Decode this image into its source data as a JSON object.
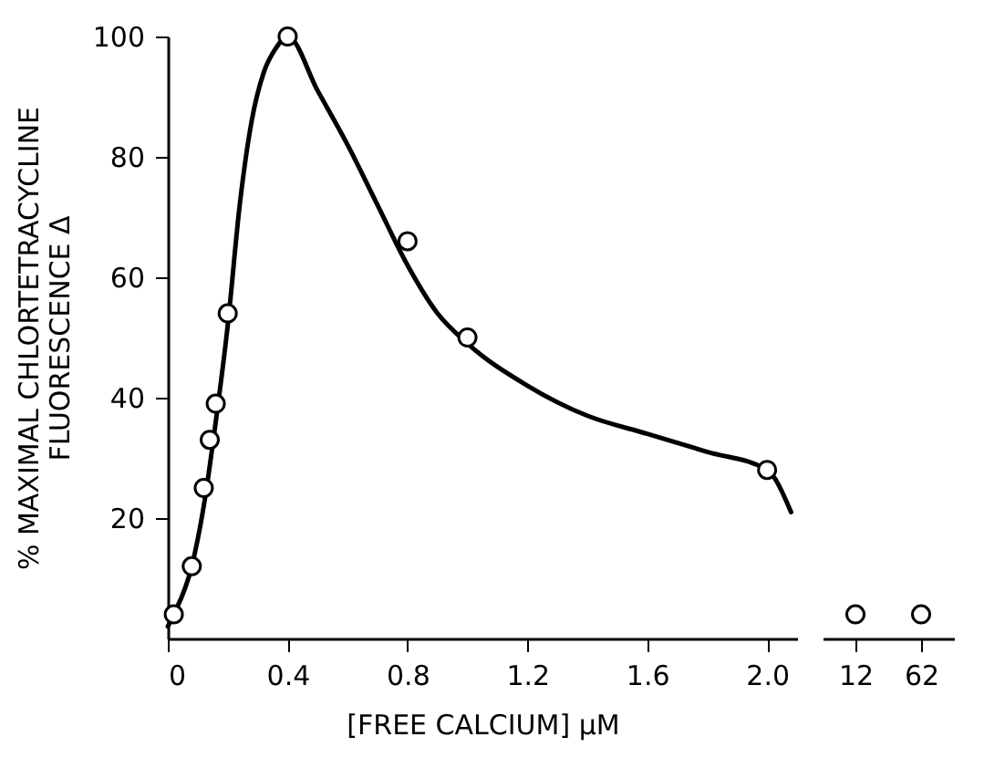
{
  "chart_data": [
    {
      "type": "scatter",
      "xlabel": "[FREE CALCIUM] μM",
      "ylabel": "% MAXIMAL CHLORTETRACYCLINE\nFLUORESCENCE Δ",
      "xlim": [
        0,
        2.1
      ],
      "xticks": [
        0,
        0.4,
        0.8,
        1.2,
        1.6,
        {
          "value": 2,
          "label": "2.0"
        }
      ],
      "ylim": [
        0,
        100
      ],
      "yticks": [
        20,
        40,
        60,
        80,
        100
      ],
      "grid": false,
      "series": [
        {
          "type": "line",
          "color": "#000000",
          "x": [
            0,
            0.02,
            0.08,
            0.12,
            0.16,
            0.2,
            0.24,
            0.28,
            0.32,
            0.36,
            0.4,
            0.5,
            0.6,
            0.7,
            0.8,
            0.9,
            1.0,
            1.2,
            1.4,
            1.6,
            1.8,
            2.0,
            2.08
          ],
          "values": [
            2,
            4,
            12,
            22,
            36,
            52,
            72,
            86,
            94,
            98,
            100,
            91,
            82,
            72,
            62,
            54,
            49,
            42,
            37,
            34,
            31,
            28,
            21
          ]
        },
        {
          "color": "#000000",
          "marker": "circle",
          "x": [
            0.02,
            0.08,
            0.12,
            0.14,
            0.16,
            0.2,
            0.4,
            0.8,
            1.0,
            2.0
          ],
          "values": [
            4,
            12,
            25,
            33,
            39,
            54,
            100,
            66,
            50,
            28
          ]
        }
      ]
    },
    {
      "type": "scatter",
      "categories": [
        "12",
        "62"
      ],
      "ylim": [
        0,
        100
      ],
      "tick_labels": "x",
      "series": [
        {
          "color": "#000000",
          "marker": "circle",
          "values": [
            4,
            4
          ]
        }
      ]
    }
  ]
}
